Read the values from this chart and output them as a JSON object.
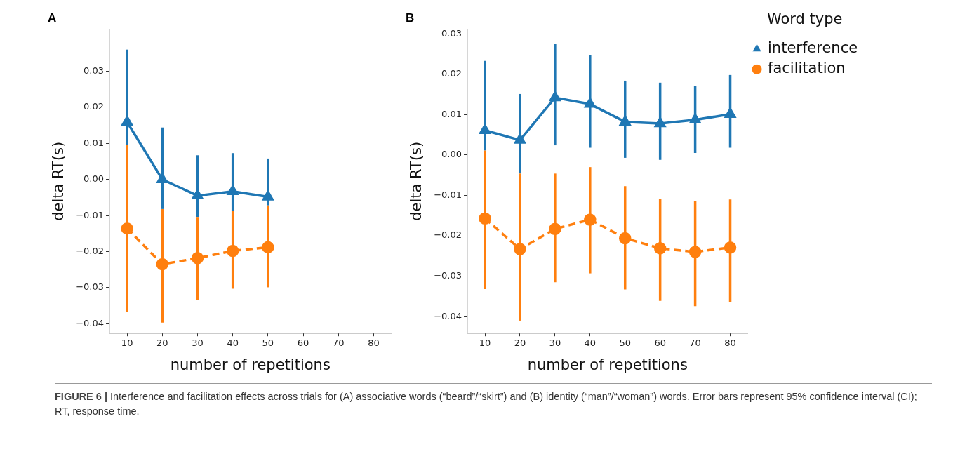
{
  "chart_data": [
    {
      "type": "line",
      "title": "A",
      "xlabel": "number of repetitions",
      "ylabel": "delta RT(s)",
      "xlim": [
        5,
        85
      ],
      "xticks": [
        10,
        20,
        30,
        40,
        50,
        60,
        70,
        80
      ],
      "ylim": [
        -0.0425,
        0.0415
      ],
      "yticks": [
        -0.04,
        -0.03,
        -0.02,
        -0.01,
        {
          "value": 0,
          "label": "0.00"
        },
        0.01,
        0.02,
        0.03
      ],
      "grid": false,
      "legend": false,
      "series": [
        {
          "color": "#1f77b4",
          "marker": "triangle",
          "line_style": "solid",
          "x": [
            10,
            20,
            30,
            40,
            50
          ],
          "values": [
            0.0159,
            0.0,
            -0.0045,
            -0.0033,
            -0.0048
          ],
          "errors": [
            [
              0.0096,
              0.036
            ],
            [
              -0.0082,
              0.0144
            ],
            [
              -0.0104,
              0.0067
            ],
            [
              -0.0087,
              0.0073
            ],
            [
              -0.0072,
              0.0058
            ]
          ]
        },
        {
          "color": "#ff7f0e",
          "marker": "circle",
          "line_style": "dashed",
          "x": [
            10,
            20,
            30,
            40,
            50
          ],
          "values": [
            -0.0136,
            -0.0235,
            -0.0218,
            -0.0198,
            -0.0188
          ],
          "errors": [
            [
              -0.0368,
              0.0096
            ],
            [
              -0.0397,
              -0.0082
            ],
            [
              -0.0335,
              -0.0104
            ],
            [
              -0.0303,
              -0.0087
            ],
            [
              -0.0299,
              -0.0072
            ]
          ]
        }
      ],
      "annotations": [
        "FIGURE 6 |",
        "Interference and facilitation effects across trials for (A) associative words (“beard”/“skirt”) and (B) identity (“man”/“woman”) words. Error bars represent 95% confidence interval (CI); RT, response time."
      ]
    },
    {
      "type": "line",
      "title": "B",
      "xlabel": "number of repetitions",
      "ylabel": "delta RT(s)",
      "xlim": [
        5,
        85
      ],
      "xticks": [
        10,
        20,
        30,
        40,
        50,
        60,
        70,
        80
      ],
      "ylim": [
        -0.044,
        0.031
      ],
      "yticks": [
        -0.04,
        -0.03,
        -0.02,
        -0.01,
        {
          "value": 0,
          "label": "0.00"
        },
        0.01,
        0.02,
        0.03
      ],
      "grid": false,
      "legend": "top right",
      "legend_title": "Word type",
      "series": [
        {
          "name": "interference",
          "color": "#1f77b4",
          "marker": "triangle",
          "line_style": "solid",
          "x": [
            10,
            20,
            30,
            40,
            50,
            60,
            70,
            80
          ],
          "values": [
            0.0061,
            0.0037,
            0.0142,
            0.0126,
            0.0082,
            0.0078,
            0.0087,
            0.0101
          ],
          "errors": [
            [
              0.0011,
              0.0233
            ],
            [
              -0.0046,
              0.0151
            ],
            [
              0.0024,
              0.0275
            ],
            [
              0.0018,
              0.0247
            ],
            [
              -0.0007,
              0.0184
            ],
            [
              -0.0012,
              0.0179
            ],
            [
              0.0005,
              0.0171
            ],
            [
              0.0018,
              0.0198
            ]
          ]
        },
        {
          "name": "facilitation",
          "color": "#ff7f0e",
          "marker": "circle",
          "line_style": "dashed",
          "x": [
            10,
            20,
            30,
            40,
            50,
            60,
            70,
            80
          ],
          "values": [
            -0.0157,
            -0.0233,
            -0.0183,
            -0.016,
            -0.0206,
            -0.0231,
            -0.024,
            -0.0229
          ],
          "errors": [
            [
              -0.0332,
              0.0011
            ],
            [
              -0.041,
              -0.0046
            ],
            [
              -0.0315,
              -0.0046
            ],
            [
              -0.0293,
              -0.003
            ],
            [
              -0.0333,
              -0.0077
            ],
            [
              -0.0361,
              -0.0109
            ],
            [
              -0.0374,
              -0.0115
            ],
            [
              -0.0365,
              -0.011
            ]
          ]
        }
      ]
    }
  ]
}
